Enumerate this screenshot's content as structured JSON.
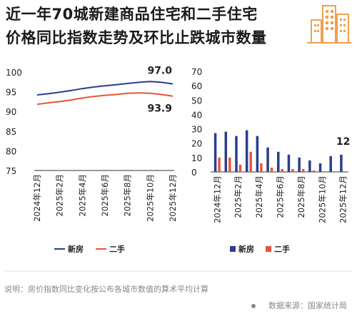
{
  "title": {
    "line1": "近一年70城新建商品住宅和二手住宅",
    "line2": "价格同比指数走势及环比止跌城市数量"
  },
  "colors": {
    "new": "#2b3d8f",
    "second": "#e8553a",
    "logo": "#f0a04b"
  },
  "logo_icon": "city-buildings-icon",
  "note": "说明：房价指数同比变化按公布各城市数值的算术平均计算",
  "source": "数据来源：国家统计局",
  "chart_data": [
    {
      "type": "line",
      "title": "",
      "x": [
        "2024年12月",
        "2025年1月",
        "2025年2月",
        "2025年3月",
        "2025年4月",
        "2025年5月",
        "2025年6月",
        "2025年7月",
        "2025年8月",
        "2025年9月",
        "2025年10月",
        "2025年11月",
        "2025年12月"
      ],
      "x_tick_labels": [
        "2024年12月",
        "2025年2月",
        "2025年4月",
        "2025年6月",
        "2025年8月",
        "2025年10月",
        "2025年12月"
      ],
      "series": [
        {
          "name": "新房",
          "values": [
            94.2,
            94.5,
            94.9,
            95.3,
            95.8,
            96.2,
            96.5,
            96.8,
            97.1,
            97.4,
            97.6,
            97.4,
            97.0
          ]
        },
        {
          "name": "二手",
          "values": [
            91.8,
            92.2,
            92.5,
            92.9,
            93.4,
            93.8,
            94.1,
            94.3,
            94.6,
            94.7,
            94.6,
            94.3,
            93.9
          ]
        }
      ],
      "annotations": [
        "97.0",
        "93.9"
      ],
      "ylim": [
        75,
        100
      ],
      "yticks": [
        "100",
        "95",
        "90",
        "85",
        "80",
        "75"
      ],
      "legend": "bottom",
      "legend_labels": [
        "新房",
        "二手"
      ]
    },
    {
      "type": "bar",
      "title": "",
      "categories": [
        "2024年12月",
        "2025年1月",
        "2025年2月",
        "2025年3月",
        "2025年4月",
        "2025年5月",
        "2025年6月",
        "2025年7月",
        "2025年8月",
        "2025年9月",
        "2025年10月",
        "2025年11月",
        "2025年12月"
      ],
      "x_tick_labels": [
        "2024年12月",
        "2025年2月",
        "2025年4月",
        "2025年6月",
        "2025年8月",
        "2025年10月",
        "2025年12月"
      ],
      "series": [
        {
          "name": "新房",
          "values": [
            27,
            28,
            25,
            29,
            25,
            17,
            14,
            12,
            10,
            8,
            6,
            11,
            12
          ]
        },
        {
          "name": "二手",
          "values": [
            10,
            10,
            5,
            14,
            6,
            3,
            2,
            2,
            2,
            1,
            0,
            0,
            0
          ]
        }
      ],
      "annotations": [
        "12"
      ],
      "ylim": [
        0,
        70
      ],
      "yticks": [
        "70",
        "60",
        "50",
        "40",
        "30",
        "20",
        "10",
        "0"
      ],
      "legend": "bottom",
      "legend_labels": [
        "新房",
        "二手"
      ]
    }
  ]
}
